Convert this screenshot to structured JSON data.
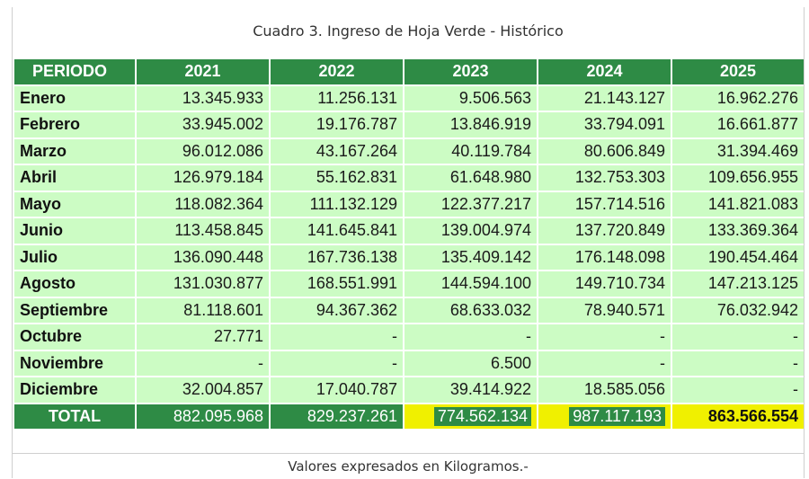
{
  "title": "Cuadro 3. Ingreso de Hoja Verde - Histórico",
  "footer": "Valores expresados en Kilogramos.-",
  "header": [
    "PERIODO",
    "2021",
    "2022",
    "2023",
    "2024",
    "2025"
  ],
  "rows": [
    {
      "month": "Enero",
      "values": [
        "13.345.933",
        "11.256.131",
        "9.506.563",
        "21.143.127",
        "16.962.276"
      ]
    },
    {
      "month": "Febrero",
      "values": [
        "33.945.002",
        "19.176.787",
        "13.846.919",
        "33.794.091",
        "16.661.877"
      ]
    },
    {
      "month": "Marzo",
      "values": [
        "96.012.086",
        "43.167.264",
        "40.119.784",
        "80.606.849",
        "31.394.469"
      ]
    },
    {
      "month": "Abril",
      "values": [
        "126.979.184",
        "55.162.831",
        "61.648.980",
        "132.753.303",
        "109.656.955"
      ]
    },
    {
      "month": "Mayo",
      "values": [
        "118.082.364",
        "111.132.129",
        "122.377.217",
        "157.714.516",
        "141.821.083"
      ]
    },
    {
      "month": "Junio",
      "values": [
        "113.458.845",
        "141.645.841",
        "139.004.974",
        "137.720.849",
        "133.369.364"
      ]
    },
    {
      "month": "Julio",
      "values": [
        "136.090.448",
        "167.736.138",
        "135.409.142",
        "176.148.098",
        "190.454.464"
      ]
    },
    {
      "month": "Agosto",
      "values": [
        "131.030.877",
        "168.551.991",
        "144.594.100",
        "149.710.734",
        "147.213.125"
      ]
    },
    {
      "month": "Septiembre",
      "values": [
        "81.118.601",
        "94.367.362",
        "68.633.032",
        "78.940.571",
        "76.032.942"
      ]
    },
    {
      "month": "Octubre",
      "values": [
        "27.771",
        "-",
        "-",
        "-",
        "-"
      ]
    },
    {
      "month": "Noviembre",
      "values": [
        "-",
        "-",
        "6.500",
        "-",
        "-"
      ]
    },
    {
      "month": "Diciembre",
      "values": [
        "32.004.857",
        "17.040.787",
        "39.414.922",
        "18.585.056",
        "-"
      ]
    }
  ],
  "total": {
    "label": "TOTAL",
    "values": [
      "882.095.968",
      "829.237.261",
      "774.562.134",
      "987.117.193",
      "863.566.554"
    ]
  },
  "colors": {
    "header_green": "#2e8b45",
    "cell_green": "#ccfcc4",
    "highlight": "#f0f000"
  }
}
